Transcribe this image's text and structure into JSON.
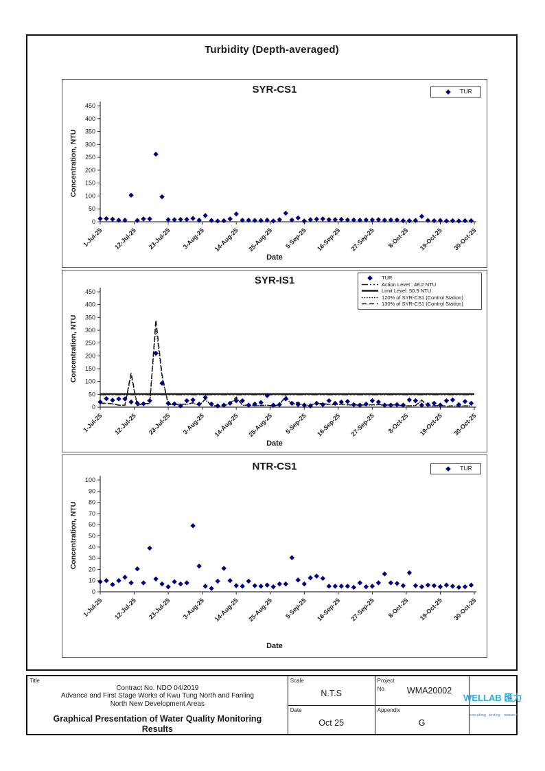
{
  "page": {
    "title": "Turbidity (Depth-averaged)"
  },
  "chart_data": [
    {
      "type": "scatter",
      "title": "SYR-CS1",
      "xlabel": "Date",
      "ylabel": "Concentration, NTU",
      "ylim": [
        0,
        450
      ],
      "ytick_step": 50,
      "x_domain_days": [
        0,
        121
      ],
      "x_tick_days": [
        0,
        11,
        22,
        33,
        44,
        55,
        66,
        77,
        88,
        99,
        110,
        121
      ],
      "x_tick_labels": [
        "1-Jul-25",
        "12-Jul-25",
        "23-Jul-25",
        "3-Aug-25",
        "14-Aug-25",
        "25-Aug-25",
        "5-Sep-25",
        "16-Sep-25",
        "27-Sep-25",
        "8-Oct-25",
        "19-Oct-25",
        "30-Oct-25"
      ],
      "legend_position": "top-right",
      "legend": [
        {
          "label": "TUR",
          "swatch": "diamond"
        }
      ],
      "series": [
        {
          "name": "TUR",
          "type": "scatter",
          "color": "#00007E",
          "days": [
            0,
            2,
            4,
            6,
            8,
            10,
            12,
            14,
            16,
            18,
            20,
            22,
            24,
            26,
            28,
            30,
            32,
            34,
            36,
            38,
            40,
            42,
            44,
            46,
            48,
            50,
            52,
            54,
            56,
            58,
            60,
            62,
            64,
            66,
            68,
            70,
            72,
            74,
            76,
            78,
            80,
            82,
            84,
            86,
            88,
            90,
            92,
            94,
            96,
            98,
            100,
            102,
            104,
            106,
            108,
            110,
            112,
            114,
            116,
            118,
            120
          ],
          "values": [
            12,
            12,
            10,
            6,
            6,
            103,
            5,
            11,
            11,
            262,
            97,
            8,
            8,
            9,
            9,
            13,
            6,
            24,
            5,
            3,
            4,
            11,
            30,
            6,
            6,
            5,
            5,
            6,
            3,
            8,
            33,
            7,
            15,
            3,
            8,
            10,
            11,
            8,
            8,
            9,
            7,
            7,
            6,
            7,
            7,
            8,
            6,
            7,
            7,
            4,
            4,
            5,
            21,
            5,
            4,
            5,
            3,
            4,
            3,
            4,
            4
          ]
        }
      ]
    },
    {
      "type": "scatter",
      "title": "SYR-IS1",
      "xlabel": "Date",
      "ylabel": "Concentration, NTU",
      "ylim": [
        0,
        450
      ],
      "ytick_step": 50,
      "x_domain_days": [
        0,
        121
      ],
      "x_tick_days": [
        0,
        11,
        22,
        33,
        44,
        55,
        66,
        77,
        88,
        99,
        110,
        121
      ],
      "x_tick_labels": [
        "1-Jul-25",
        "12-Jul-25",
        "23-Jul-25",
        "3-Aug-25",
        "14-Aug-25",
        "25-Aug-25",
        "5-Sep-25",
        "16-Sep-25",
        "27-Sep-25",
        "8-Oct-25",
        "19-Oct-25",
        "30-Oct-25"
      ],
      "legend_position": "top-right",
      "legend": [
        {
          "label": "TUR",
          "swatch": "diamond"
        },
        {
          "label": "Action Level : 48.2 NTU",
          "swatch": "dashdot"
        },
        {
          "label": "Limit Level: 50.9 NTU",
          "swatch": "solid"
        },
        {
          "label": "120% of SYR-CS1 (Control Station)",
          "swatch": "dotted"
        },
        {
          "label": "130% of SYR-CS1 (Control Station)",
          "swatch": "dashed"
        }
      ],
      "series": [
        {
          "name": "TUR",
          "type": "scatter",
          "color": "#00007E",
          "days": [
            0,
            2,
            4,
            6,
            8,
            10,
            12,
            14,
            16,
            18,
            20,
            22,
            24,
            26,
            28,
            30,
            32,
            34,
            36,
            38,
            40,
            42,
            44,
            46,
            48,
            50,
            52,
            54,
            56,
            58,
            60,
            62,
            64,
            66,
            68,
            70,
            72,
            74,
            76,
            78,
            80,
            82,
            84,
            86,
            88,
            90,
            92,
            94,
            96,
            98,
            100,
            102,
            104,
            106,
            108,
            110,
            112,
            114,
            116,
            118,
            120
          ],
          "values": [
            20,
            33,
            27,
            32,
            32,
            20,
            15,
            13,
            25,
            210,
            93,
            15,
            13,
            5,
            25,
            28,
            12,
            38,
            12,
            5,
            8,
            15,
            25,
            25,
            8,
            12,
            18,
            45,
            8,
            10,
            32,
            15,
            10,
            8,
            5,
            15,
            10,
            25,
            15,
            20,
            22,
            10,
            8,
            12,
            25,
            20,
            8,
            8,
            10,
            8,
            28,
            25,
            8,
            10,
            15,
            8,
            25,
            28,
            10,
            22,
            15
          ]
        },
        {
          "name": "Action Level : 48.2 NTU",
          "type": "hline",
          "value": 48.2,
          "style": "dashdot",
          "color": "#1a1a1a"
        },
        {
          "name": "Limit Level: 50.9 NTU",
          "type": "hline",
          "value": 50.9,
          "style": "solid",
          "color": "#1a1a1a"
        },
        {
          "name": "120% of SYR-CS1 (Control Station)",
          "type": "derived-line",
          "style": "dotted",
          "factor": 1.2,
          "source_chart": 0,
          "source_series": 0,
          "color": "#1a1a1a"
        },
        {
          "name": "130% of SYR-CS1 (Control Station)",
          "type": "derived-line",
          "style": "dashed",
          "factor": 1.3,
          "source_chart": 0,
          "source_series": 0,
          "color": "#1a1a1a"
        }
      ]
    },
    {
      "type": "scatter",
      "title": "NTR-CS1",
      "xlabel": "Date",
      "ylabel": "Concentration, NTU",
      "ylim": [
        0,
        100
      ],
      "ytick_step": 10,
      "x_domain_days": [
        0,
        121
      ],
      "x_tick_days": [
        0,
        11,
        22,
        33,
        44,
        55,
        66,
        77,
        88,
        99,
        110,
        121
      ],
      "x_tick_labels": [
        "1-Jul-25",
        "12-Jul-25",
        "23-Jul-25",
        "3-Aug-25",
        "14-Aug-25",
        "25-Aug-25",
        "5-Sep-25",
        "16-Sep-25",
        "27-Sep-25",
        "8-Oct-25",
        "19-Oct-25",
        "30-Oct-25"
      ],
      "legend_position": "top-right",
      "legend": [
        {
          "label": "TUR",
          "swatch": "diamond"
        }
      ],
      "series": [
        {
          "name": "TUR",
          "type": "scatter",
          "color": "#00007E",
          "days": [
            0,
            2,
            4,
            6,
            8,
            10,
            12,
            14,
            16,
            18,
            20,
            22,
            24,
            26,
            28,
            30,
            32,
            34,
            36,
            38,
            40,
            42,
            44,
            46,
            48,
            50,
            52,
            54,
            56,
            58,
            60,
            62,
            64,
            66,
            68,
            70,
            72,
            74,
            76,
            78,
            80,
            82,
            84,
            86,
            88,
            90,
            92,
            94,
            96,
            98,
            100,
            102,
            104,
            106,
            108,
            110,
            112,
            114,
            116,
            118,
            120
          ],
          "values": [
            9,
            10,
            6.5,
            10,
            13,
            8,
            20.5,
            8,
            39,
            11.5,
            7,
            4.5,
            9,
            7,
            8,
            59,
            23,
            5,
            3,
            9.5,
            21,
            10,
            5.5,
            5,
            9.5,
            5.5,
            5,
            6,
            4.5,
            7,
            7,
            30.5,
            10.5,
            7,
            12.5,
            14,
            12,
            5,
            5,
            5,
            5,
            4,
            8,
            4.5,
            5,
            8,
            16,
            8,
            7.5,
            5.5,
            17,
            5.5,
            4.5,
            6,
            5.5,
            4.5,
            6,
            5,
            4,
            4.5,
            6
          ]
        }
      ]
    }
  ],
  "footer": {
    "title_label": "Title",
    "contract_no": "Contract No. NDO 04/2019",
    "contract_desc_line1": "Advance and First Stage Works of Kwu Tung North and Fanling",
    "contract_desc_line2": "North New Development Areas",
    "document_title": "Graphical Presentation of Water Quality Monitoring Results",
    "scale_label": "Scale",
    "scale_value": "N.T.S",
    "project_label": "Project",
    "project_no_label": "No.",
    "project_value": "WMA20002",
    "date_label": "Date",
    "date_value": "Oct 25",
    "appendix_label": "Appendix",
    "appendix_value": "G",
    "logo": {
      "wordmark": "WELLAB",
      "cjk": "匯力",
      "tagline": "consulting . testing . research",
      "color": "#29ABE2"
    }
  }
}
